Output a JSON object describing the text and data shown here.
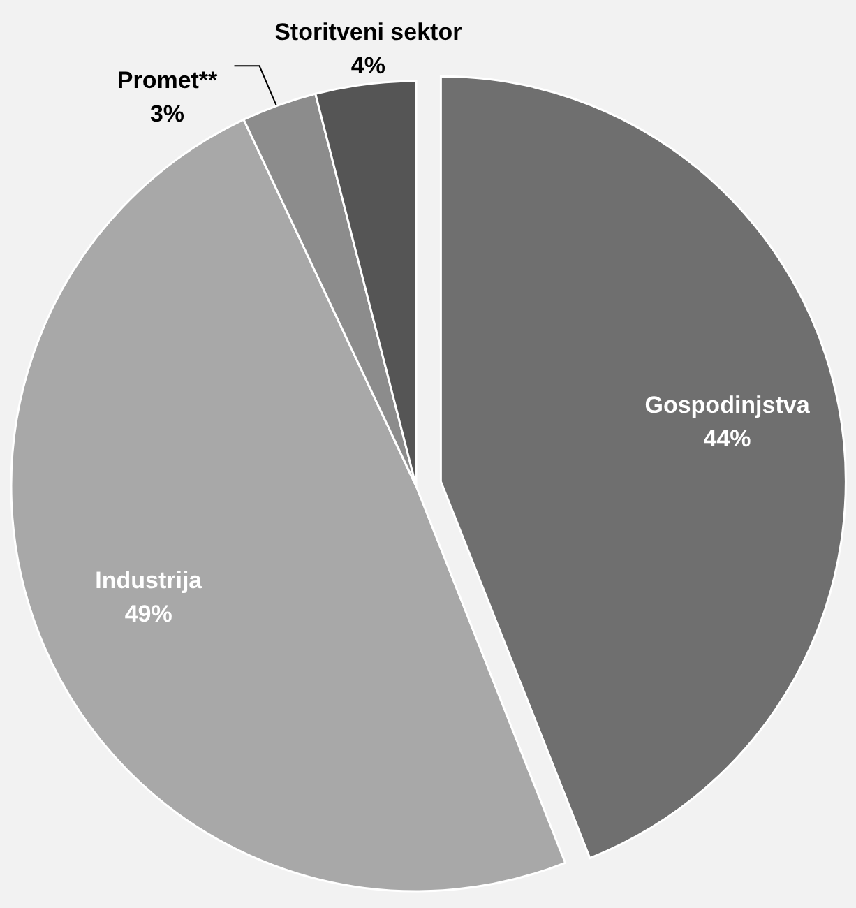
{
  "chart_data": {
    "type": "pie",
    "categories": [
      "Gospodinjstva",
      "Industrija",
      "Promet**",
      "Storitveni sektor"
    ],
    "values": [
      44,
      49,
      3,
      4
    ],
    "value_labels": [
      "44%",
      "49%",
      "3%",
      "4%"
    ],
    "colors": [
      "#6f6f6f",
      "#a8a8a8",
      "#8c8c8c",
      "#555555"
    ],
    "legend": false
  }
}
